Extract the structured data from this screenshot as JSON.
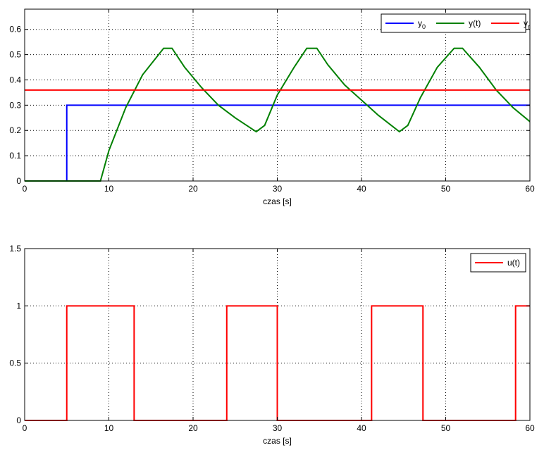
{
  "chart_data": [
    {
      "type": "line",
      "xlabel": "czas [s]",
      "ylabel": "",
      "title": "",
      "xlim": [
        0,
        60
      ],
      "ylim": [
        0,
        0.68
      ],
      "xticks": [
        0,
        10,
        20,
        30,
        40,
        50,
        60
      ],
      "yticks": [
        0,
        0.1,
        0.2,
        0.3,
        0.4,
        0.5,
        0.6
      ],
      "grid": true,
      "legend_position": "top-right",
      "series": [
        {
          "name": "y",
          "name_sub": "0",
          "color": "#0000ff",
          "x": [
            0,
            5,
            5,
            60
          ],
          "y": [
            0,
            0,
            0.3,
            0.3
          ]
        },
        {
          "name": "y(t)",
          "name_sub": "",
          "color": "#008000",
          "x": [
            0,
            9,
            10,
            12,
            14,
            16.5,
            17.5,
            19,
            21,
            23,
            25,
            27.5,
            28.5,
            30,
            32,
            33.5,
            34.7,
            36,
            38,
            40,
            42,
            44.5,
            45.5,
            47,
            49,
            51,
            52,
            54,
            56,
            58,
            60
          ],
          "y": [
            0,
            0,
            0.12,
            0.29,
            0.42,
            0.525,
            0.525,
            0.45,
            0.37,
            0.3,
            0.25,
            0.195,
            0.22,
            0.34,
            0.45,
            0.525,
            0.525,
            0.46,
            0.38,
            0.32,
            0.26,
            0.195,
            0.22,
            0.33,
            0.45,
            0.525,
            0.525,
            0.45,
            0.36,
            0.29,
            0.235
          ]
        },
        {
          "name": "y",
          "name_sub": "r",
          "color": "#ff0000",
          "x": [
            0,
            60
          ],
          "y": [
            0.36,
            0.36
          ]
        }
      ]
    },
    {
      "type": "line",
      "xlabel": "czas [s]",
      "ylabel": "",
      "title": "",
      "xlim": [
        0,
        60
      ],
      "ylim": [
        0,
        1.5
      ],
      "xticks": [
        0,
        10,
        20,
        30,
        40,
        50,
        60
      ],
      "yticks": [
        0,
        0.5,
        1,
        1.5
      ],
      "grid": true,
      "legend_position": "top-right",
      "series": [
        {
          "name": "u(t)",
          "name_sub": "",
          "color": "#ff0000",
          "x": [
            0,
            5,
            5,
            13,
            13,
            24,
            24,
            30,
            30,
            41.2,
            41.2,
            47.3,
            47.3,
            58.3,
            58.3,
            60
          ],
          "y": [
            0,
            0,
            1,
            1,
            0,
            0,
            1,
            1,
            0,
            0,
            1,
            1,
            0,
            0,
            1,
            1
          ]
        }
      ]
    }
  ]
}
